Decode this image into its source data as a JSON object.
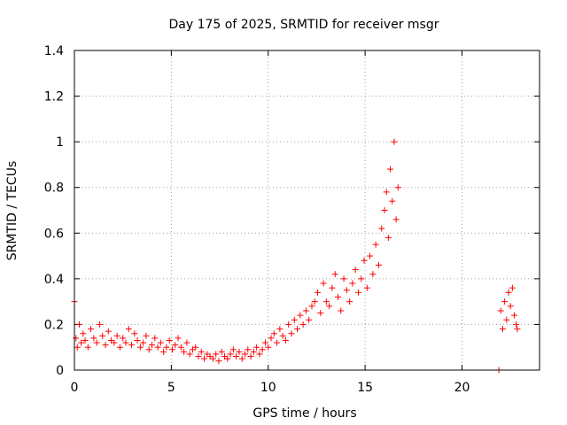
{
  "chart_data": {
    "type": "scatter",
    "title": "Day 175 of 2025, SRMTID for receiver msgr",
    "xlabel": "GPS time / hours",
    "ylabel": "SRMTID / TECUs",
    "xlim": [
      0,
      24
    ],
    "ylim": [
      0,
      1.4
    ],
    "xticks": [
      0,
      5,
      10,
      15,
      20
    ],
    "xtick_labels": [
      "0",
      "5",
      "10",
      "15",
      "20"
    ],
    "yticks": [
      0,
      0.2,
      0.4,
      0.6,
      0.8,
      1.0,
      1.2,
      1.4
    ],
    "ytick_labels": [
      "0",
      "0.2",
      "0.4",
      "0.6",
      "0.8",
      "1",
      "1.2",
      "1.4"
    ],
    "grid": true,
    "marker": "+",
    "marker_color": "#ff0000",
    "series": [
      {
        "name": "SRMTID",
        "x": [
          0.0,
          0.08,
          0.15,
          0.25,
          0.35,
          0.45,
          0.55,
          0.7,
          0.85,
          1.0,
          1.15,
          1.3,
          1.45,
          1.6,
          1.75,
          1.9,
          2.05,
          2.2,
          2.35,
          2.5,
          2.65,
          2.8,
          2.95,
          3.1,
          3.25,
          3.4,
          3.55,
          3.7,
          3.85,
          4.0,
          4.15,
          4.3,
          4.45,
          4.6,
          4.75,
          4.9,
          5.05,
          5.2,
          5.35,
          5.5,
          5.65,
          5.8,
          5.95,
          6.1,
          6.25,
          6.4,
          6.55,
          6.7,
          6.85,
          7.0,
          7.15,
          7.3,
          7.45,
          7.6,
          7.75,
          7.9,
          8.05,
          8.2,
          8.35,
          8.5,
          8.65,
          8.8,
          8.95,
          9.1,
          9.25,
          9.4,
          9.55,
          9.7,
          9.85,
          10.0,
          10.15,
          10.3,
          10.45,
          10.6,
          10.75,
          10.9,
          11.05,
          11.2,
          11.35,
          11.5,
          11.65,
          11.8,
          11.95,
          12.1,
          12.25,
          12.4,
          12.55,
          12.7,
          12.85,
          13.0,
          13.15,
          13.3,
          13.45,
          13.6,
          13.75,
          13.9,
          14.05,
          14.2,
          14.35,
          14.5,
          14.65,
          14.8,
          14.95,
          15.1,
          15.25,
          15.4,
          15.55,
          15.7,
          15.85,
          16.0,
          16.1,
          16.2,
          16.3,
          16.4,
          16.5,
          16.6,
          16.7,
          21.9,
          22.0,
          22.1,
          22.2,
          22.3,
          22.4,
          22.5,
          22.6,
          22.7,
          22.8,
          22.85
        ],
        "y": [
          0.3,
          0.14,
          0.1,
          0.2,
          0.12,
          0.16,
          0.13,
          0.1,
          0.18,
          0.14,
          0.12,
          0.2,
          0.15,
          0.11,
          0.17,
          0.13,
          0.12,
          0.15,
          0.1,
          0.14,
          0.12,
          0.18,
          0.11,
          0.16,
          0.13,
          0.1,
          0.12,
          0.15,
          0.09,
          0.11,
          0.14,
          0.1,
          0.12,
          0.08,
          0.1,
          0.13,
          0.09,
          0.11,
          0.14,
          0.1,
          0.08,
          0.12,
          0.07,
          0.09,
          0.1,
          0.06,
          0.08,
          0.05,
          0.07,
          0.06,
          0.05,
          0.07,
          0.04,
          0.08,
          0.06,
          0.05,
          0.07,
          0.09,
          0.06,
          0.08,
          0.05,
          0.07,
          0.09,
          0.06,
          0.08,
          0.1,
          0.07,
          0.09,
          0.12,
          0.1,
          0.14,
          0.16,
          0.12,
          0.18,
          0.15,
          0.13,
          0.2,
          0.16,
          0.22,
          0.18,
          0.24,
          0.2,
          0.26,
          0.22,
          0.28,
          0.3,
          0.34,
          0.25,
          0.38,
          0.3,
          0.28,
          0.36,
          0.42,
          0.32,
          0.26,
          0.4,
          0.35,
          0.3,
          0.38,
          0.44,
          0.34,
          0.4,
          0.48,
          0.36,
          0.5,
          0.42,
          0.55,
          0.46,
          0.62,
          0.7,
          0.78,
          0.58,
          0.88,
          0.74,
          1.0,
          0.66,
          0.8,
          0.0,
          0.26,
          0.18,
          0.3,
          0.22,
          0.34,
          0.28,
          0.36,
          0.24,
          0.2,
          0.18
        ]
      }
    ]
  }
}
